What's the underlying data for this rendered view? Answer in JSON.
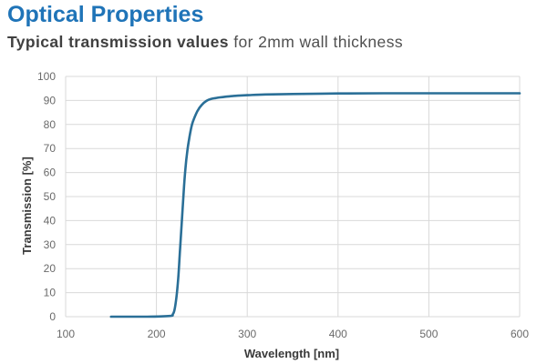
{
  "title": "Optical Properties",
  "subtitle": {
    "bold": "Typical transmission values",
    "rest": "for 2mm wall thickness"
  },
  "colors": {
    "title": "#1f74b8",
    "line": "#2a6f97",
    "grid": "#d9d9d9",
    "axis_text": "#6a6a6a",
    "axis_title": "#3a3a3a"
  },
  "chart_data": {
    "type": "line",
    "xlabel": "Wavelength [nm]",
    "ylabel": "Transmission [%]",
    "xlim": [
      100,
      600
    ],
    "ylim": [
      0,
      100
    ],
    "x_ticks": [
      100,
      200,
      300,
      400,
      500,
      600
    ],
    "y_ticks": [
      0,
      10,
      20,
      30,
      40,
      50,
      60,
      70,
      80,
      90,
      100
    ],
    "grid": true,
    "legend": "none",
    "series": [
      {
        "x": [
          150,
          190,
          215,
          218,
          220,
          222,
          224,
          226,
          228,
          230,
          232,
          234,
          236,
          238,
          240,
          245,
          250,
          255,
          260,
          265,
          270,
          280,
          290,
          300,
          320,
          350,
          400,
          450,
          500,
          550,
          600
        ],
        "y": [
          0,
          0,
          0.3,
          1,
          3,
          8,
          16,
          28,
          40,
          52,
          62,
          69,
          74,
          78,
          81,
          85.5,
          88.2,
          89.8,
          90.6,
          91,
          91.3,
          91.7,
          92,
          92.2,
          92.5,
          92.7,
          92.9,
          93,
          93,
          93,
          93
        ]
      }
    ]
  }
}
